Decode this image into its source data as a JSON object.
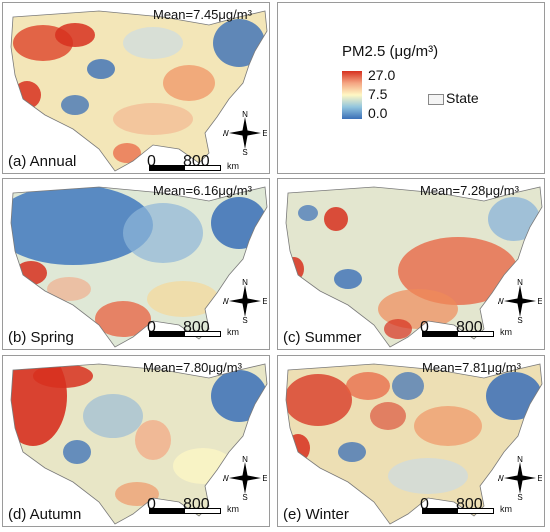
{
  "legend": {
    "title": "PM2.5 (μg/m³)",
    "max_label": "27.0",
    "mid_label": "7.5",
    "min_label": "0.0",
    "state_label": "State",
    "colors": {
      "high": "#d7301f",
      "mid": "#fff8c4",
      "low": "#3a6fb7"
    }
  },
  "scalebar": {
    "zero": "0",
    "dist": "800",
    "unit": "km"
  },
  "compass": {
    "n": "N",
    "s": "S",
    "e": "E",
    "w": "W"
  },
  "panels": [
    {
      "id": "annual",
      "label": "(a) Annual",
      "mean": "Mean=7.45μg/m³"
    },
    {
      "id": "spring",
      "label": "(b) Spring",
      "mean": "Mean=6.16μg/m³"
    },
    {
      "id": "summer",
      "label": "(c) Summer",
      "mean": "Mean=7.28μg/m³"
    },
    {
      "id": "autumn",
      "label": "(d) Autumn",
      "mean": "Mean=7.80μg/m³"
    },
    {
      "id": "winter",
      "label": "(e) Winter",
      "mean": "Mean=7.81μg/m³"
    }
  ]
}
